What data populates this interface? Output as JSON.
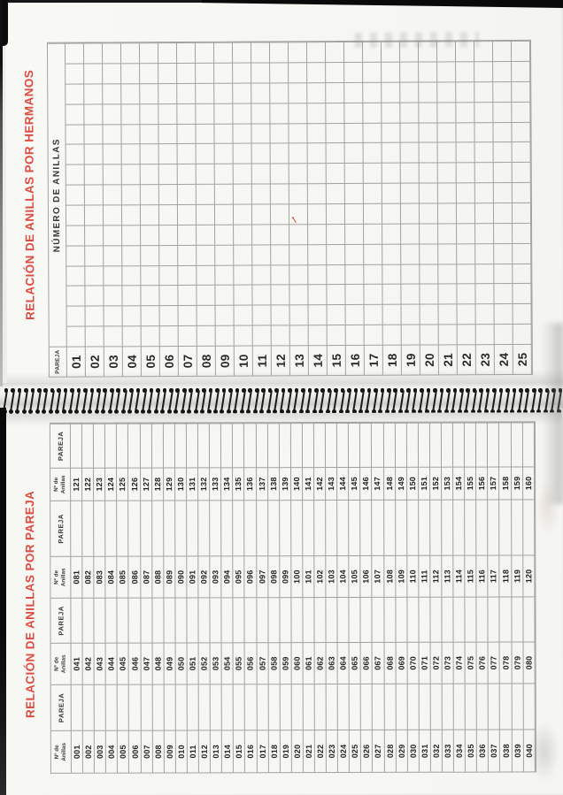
{
  "colors": {
    "accent_red": "#df4b41",
    "paper": "#f6f6f3",
    "grid_line": "#a2a2a0",
    "ink": "#262626",
    "edge_black": "#0c0c0c"
  },
  "hermanos": {
    "title": "RELACIÓN DE ANILLAS POR HERMANOS",
    "table": {
      "corner_header": "PAREJA",
      "span_header": "NÚMERO DE ANILLAS",
      "empty_columns": 15,
      "row_labels": [
        "01",
        "02",
        "03",
        "04",
        "05",
        "06",
        "07",
        "08",
        "09",
        "10",
        "11",
        "12",
        "13",
        "14",
        "15",
        "16",
        "17",
        "18",
        "19",
        "20",
        "21",
        "22",
        "23",
        "24",
        "25"
      ]
    }
  },
  "pareja": {
    "title": "RELACIÓN DE ANILLAS POR PAREJA",
    "table": {
      "ring_header": [
        "Nº de",
        "Anillas"
      ],
      "pareja_header": "PAREJA",
      "rows": 40,
      "groups": [
        {
          "numbers": [
            "001",
            "002",
            "003",
            "004",
            "005",
            "006",
            "007",
            "008",
            "009",
            "010",
            "011",
            "012",
            "013",
            "014",
            "015",
            "016",
            "017",
            "018",
            "019",
            "020",
            "021",
            "022",
            "023",
            "024",
            "025",
            "026",
            "027",
            "028",
            "029",
            "030",
            "031",
            "032",
            "033",
            "034",
            "035",
            "036",
            "037",
            "038",
            "039",
            "040"
          ]
        },
        {
          "numbers": [
            "041",
            "042",
            "043",
            "044",
            "045",
            "046",
            "047",
            "048",
            "049",
            "050",
            "051",
            "052",
            "053",
            "054",
            "055",
            "056",
            "057",
            "058",
            "059",
            "060",
            "061",
            "062",
            "063",
            "064",
            "065",
            "066",
            "067",
            "068",
            "069",
            "070",
            "071",
            "072",
            "073",
            "074",
            "075",
            "076",
            "077",
            "078",
            "079",
            "080"
          ]
        },
        {
          "numbers": [
            "081",
            "082",
            "083",
            "084",
            "085",
            "086",
            "087",
            "088",
            "089",
            "090",
            "091",
            "092",
            "093",
            "094",
            "095",
            "096",
            "097",
            "098",
            "099",
            "100",
            "101",
            "102",
            "103",
            "104",
            "105",
            "106",
            "107",
            "108",
            "109",
            "110",
            "111",
            "112",
            "113",
            "114",
            "115",
            "116",
            "117",
            "118",
            "119",
            "120"
          ]
        },
        {
          "numbers": [
            "121",
            "122",
            "123",
            "124",
            "125",
            "126",
            "127",
            "128",
            "129",
            "130",
            "131",
            "132",
            "133",
            "134",
            "135",
            "136",
            "137",
            "138",
            "139",
            "140",
            "141",
            "142",
            "143",
            "144",
            "145",
            "146",
            "147",
            "148",
            "149",
            "150",
            "151",
            "152",
            "153",
            "154",
            "155",
            "156",
            "157",
            "158",
            "159",
            "160"
          ]
        }
      ]
    }
  }
}
